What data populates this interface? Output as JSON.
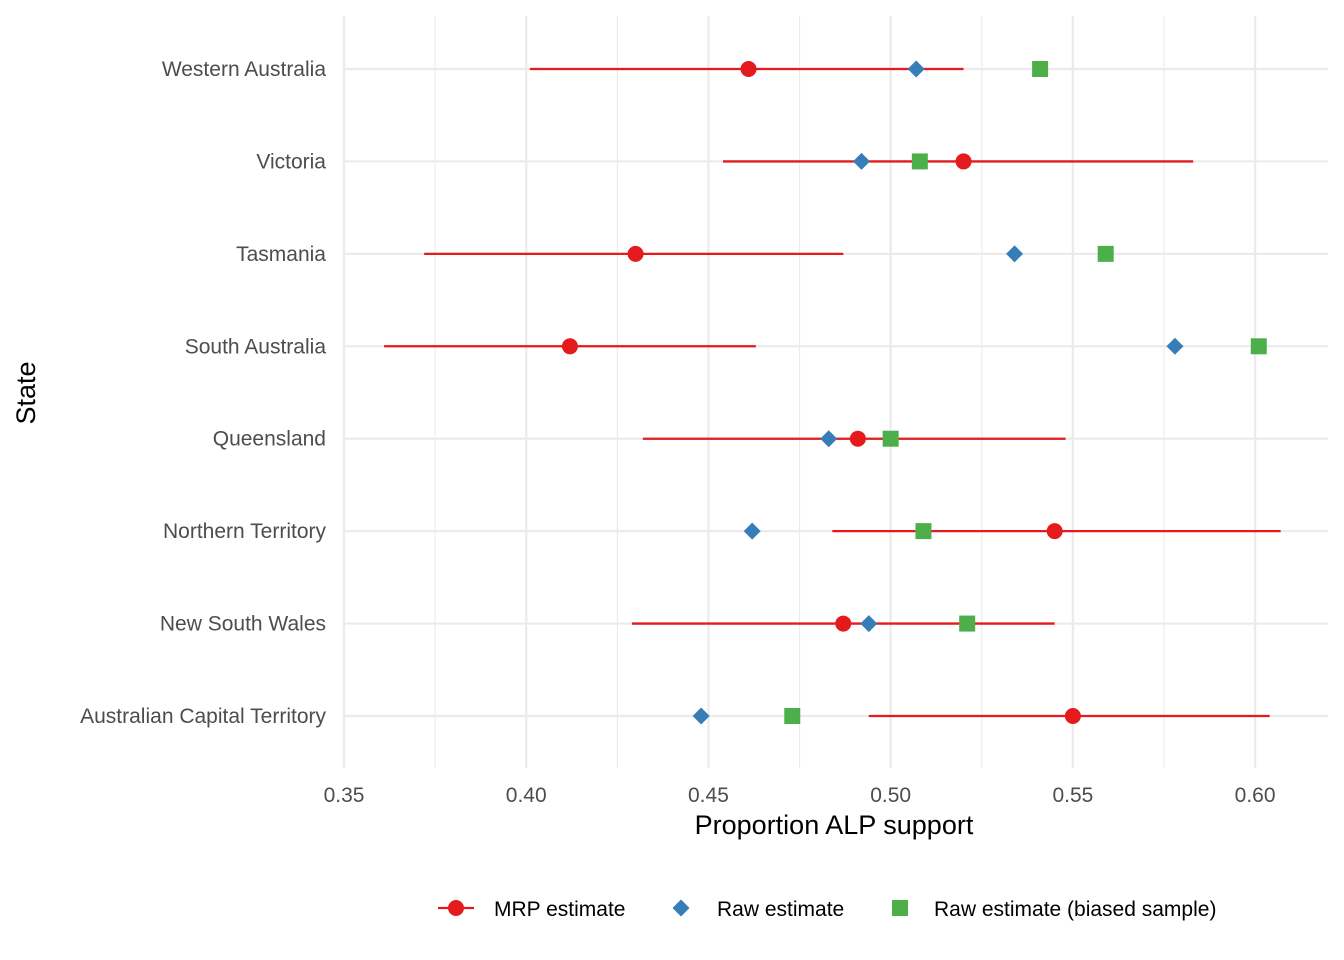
{
  "chart_data": {
    "type": "scatter",
    "xlabel": "Proportion ALP support",
    "ylabel": "State",
    "xlim": [
      0.35,
      0.62
    ],
    "x_ticks": [
      "0.35",
      "0.40",
      "0.45",
      "0.50",
      "0.55",
      "0.60"
    ],
    "x_tick_values": [
      0.35,
      0.4,
      0.45,
      0.5,
      0.55,
      0.6
    ],
    "categories": [
      "Australian Capital Territory",
      "New South Wales",
      "Northern Territory",
      "Queensland",
      "South Australia",
      "Tasmania",
      "Victoria",
      "Western Australia"
    ],
    "grid": true,
    "legend_position": "bottom",
    "series": [
      {
        "name": "MRP estimate",
        "marker": "circle",
        "color": "#E41A1C",
        "values": [
          0.55,
          0.487,
          0.545,
          0.491,
          0.412,
          0.43,
          0.52,
          0.461
        ],
        "lower": [
          0.494,
          0.429,
          0.484,
          0.432,
          0.361,
          0.372,
          0.454,
          0.401
        ],
        "upper": [
          0.604,
          0.545,
          0.607,
          0.548,
          0.463,
          0.487,
          0.583,
          0.52
        ]
      },
      {
        "name": "Raw estimate",
        "marker": "diamond",
        "color": "#377EB8",
        "values": [
          0.448,
          0.494,
          0.462,
          0.483,
          0.578,
          0.534,
          0.492,
          0.507
        ]
      },
      {
        "name": "Raw estimate (biased sample)",
        "marker": "square",
        "color": "#4DAF4A",
        "values": [
          0.473,
          0.521,
          0.509,
          0.5,
          0.601,
          0.559,
          0.508,
          0.541
        ]
      }
    ]
  }
}
